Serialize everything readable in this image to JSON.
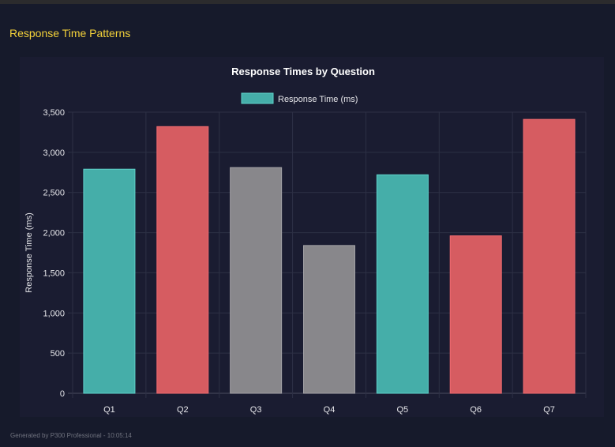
{
  "section_title": "Response Time Patterns",
  "footer": "Generated by P300 Professional - 10:05:14",
  "chart_data": {
    "type": "bar",
    "title": "Response Times by Question",
    "xlabel": "",
    "ylabel": "Response Time (ms)",
    "ylim": [
      0,
      3500
    ],
    "yticks": [
      0,
      500,
      1000,
      1500,
      2000,
      2500,
      3000,
      3500
    ],
    "ytick_labels": [
      "0",
      "500",
      "1,000",
      "1,500",
      "2,000",
      "2,500",
      "3,000",
      "3,500"
    ],
    "grid": true,
    "legend": {
      "placement": "top",
      "entries": [
        "Response Time (ms)"
      ]
    },
    "categories": [
      "Q1",
      "Q2",
      "Q3",
      "Q4",
      "Q5",
      "Q6",
      "Q7"
    ],
    "series": [
      {
        "name": "Response Time (ms)",
        "values": [
          2790,
          3320,
          2810,
          1840,
          2720,
          1960,
          3410
        ]
      }
    ],
    "bar_colors": [
      "#45aea9",
      "#d65c61",
      "#88878b",
      "#88878b",
      "#45aea9",
      "#d65c61",
      "#d65c61"
    ],
    "bar_border_colors": [
      "#5fd3cb",
      "#f06a70",
      "#a3a2a6",
      "#a3a2a6",
      "#5fd3cb",
      "#f06a70",
      "#f06a70"
    ]
  }
}
